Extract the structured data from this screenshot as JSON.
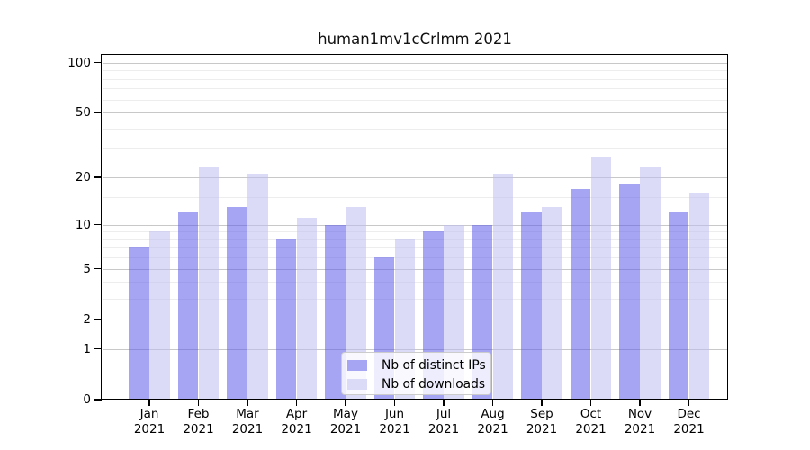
{
  "chart_data": {
    "type": "bar",
    "title": "human1mv1cCrlmm 2021",
    "categories": [
      "Jan",
      "Feb",
      "Mar",
      "Apr",
      "May",
      "Jun",
      "Jul",
      "Aug",
      "Sep",
      "Oct",
      "Nov",
      "Dec"
    ],
    "year": "2021",
    "series": [
      {
        "name": "Nb of distinct IPs",
        "values": [
          7,
          12,
          13,
          8,
          10,
          6,
          9,
          10,
          12,
          17,
          18,
          12
        ],
        "color": "rgba(91,91,233,0.55)",
        "legend_color": "#a5a5f3"
      },
      {
        "name": "Nb of downloads",
        "values": [
          9,
          23,
          21,
          11,
          13,
          8,
          10,
          21,
          13,
          27,
          23,
          16
        ],
        "color": "rgba(190,190,242,0.55)",
        "legend_color": "#dbdbf8"
      }
    ],
    "xlabel": "",
    "ylabel": "",
    "yscale": "log10(value+1)",
    "ylim": [
      0,
      112
    ],
    "yticks": [
      100,
      50,
      20,
      10,
      5,
      2,
      1,
      0
    ],
    "minor_yticks": [
      3,
      4,
      6,
      7,
      8,
      9,
      15,
      30,
      40,
      60,
      70,
      80,
      90
    ],
    "grid": true,
    "legend_position": "lower-center"
  },
  "colors": {
    "major_grid": "#c8c8c8",
    "minor_grid": "#ededed",
    "axis": "#000000",
    "legend_border": "#cccccc",
    "legend_background": "rgba(255,255,255,0.8)"
  }
}
